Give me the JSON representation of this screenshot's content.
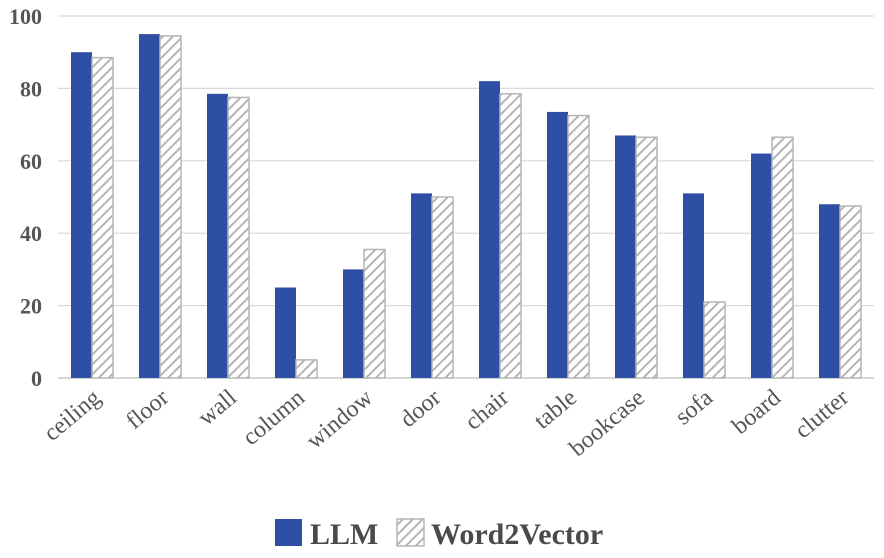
{
  "chart_data": {
    "type": "bar",
    "categories": [
      "ceiling",
      "floor",
      "wall",
      "column",
      "window",
      "door",
      "chair",
      "table",
      "bookcase",
      "sofa",
      "board",
      "clutter"
    ],
    "series": [
      {
        "name": "LLM",
        "values": [
          90,
          95,
          78.5,
          25,
          30,
          51,
          82,
          73.5,
          67,
          51,
          62,
          48
        ],
        "color": "#2e4fa3",
        "pattern": "solid"
      },
      {
        "name": "Word2Vector",
        "values": [
          88.5,
          94.5,
          77.5,
          5,
          35.5,
          50,
          78.5,
          72.5,
          66.5,
          21,
          66.5,
          47.5
        ],
        "color": "#b5b5b5",
        "pattern": "diagonal-hatch"
      }
    ],
    "ylim": [
      0,
      100
    ],
    "yticks": [
      "0",
      "20",
      "40",
      "60",
      "80",
      "100"
    ],
    "grid": true,
    "legend_position": "bottom",
    "title": "",
    "xlabel": "",
    "ylabel": ""
  }
}
